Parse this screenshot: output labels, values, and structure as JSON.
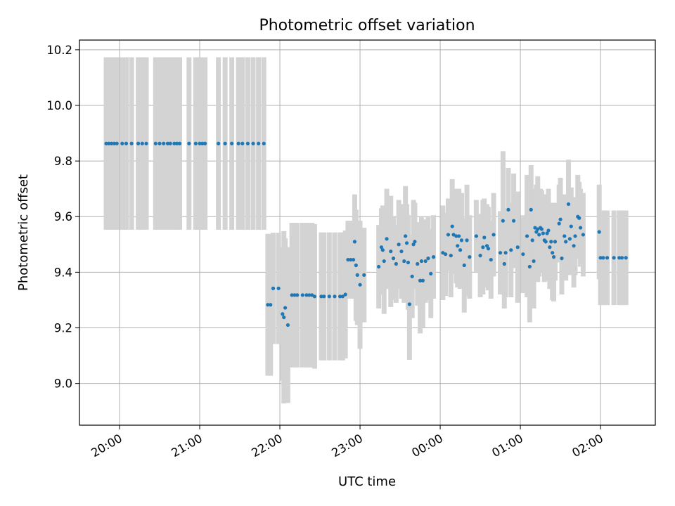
{
  "chart_data": {
    "type": "scatter",
    "title": "Photometric offset variation",
    "xlabel": "UTC time",
    "ylabel": "Photometric offset",
    "xlim": [
      "19:30",
      "02:41"
    ],
    "ylim": [
      8.85,
      10.235
    ],
    "xticks": [
      "20:00",
      "21:00",
      "22:00",
      "23:00",
      "00:00",
      "01:00",
      "02:00"
    ],
    "yticks": [
      9.0,
      9.2,
      9.4,
      9.6,
      9.8,
      10.0,
      10.2
    ],
    "ytick_labels": [
      "9.0",
      "9.2",
      "9.4",
      "9.6",
      "9.8",
      "10.0",
      "10.2"
    ],
    "grid": true,
    "point_color": "#1f77b4",
    "errorbar_color": "#d3d3d3",
    "points": [
      {
        "t": "19:50",
        "y": 9.863,
        "e": 0.31
      },
      {
        "t": "19:52",
        "y": 9.863,
        "e": 0.31
      },
      {
        "t": "19:54",
        "y": 9.863,
        "e": 0.31
      },
      {
        "t": "19:56",
        "y": 9.863,
        "e": 0.31
      },
      {
        "t": "19:58",
        "y": 9.863,
        "e": 0.31
      },
      {
        "t": "20:02",
        "y": 9.863,
        "e": 0.31
      },
      {
        "t": "20:05",
        "y": 9.863,
        "e": 0.31
      },
      {
        "t": "20:09",
        "y": 9.863,
        "e": 0.31
      },
      {
        "t": "20:14",
        "y": 9.863,
        "e": 0.31
      },
      {
        "t": "20:17",
        "y": 9.863,
        "e": 0.31
      },
      {
        "t": "20:20",
        "y": 9.863,
        "e": 0.31
      },
      {
        "t": "20:27",
        "y": 9.863,
        "e": 0.31
      },
      {
        "t": "20:30",
        "y": 9.863,
        "e": 0.31
      },
      {
        "t": "20:33",
        "y": 9.863,
        "e": 0.31
      },
      {
        "t": "20:36",
        "y": 9.863,
        "e": 0.31
      },
      {
        "t": "20:38",
        "y": 9.863,
        "e": 0.31
      },
      {
        "t": "20:41",
        "y": 9.863,
        "e": 0.31
      },
      {
        "t": "20:43",
        "y": 9.863,
        "e": 0.31
      },
      {
        "t": "20:45",
        "y": 9.863,
        "e": 0.31
      },
      {
        "t": "20:52",
        "y": 9.863,
        "e": 0.31
      },
      {
        "t": "20:57",
        "y": 9.863,
        "e": 0.31
      },
      {
        "t": "21:00",
        "y": 9.863,
        "e": 0.31
      },
      {
        "t": "21:02",
        "y": 9.863,
        "e": 0.31
      },
      {
        "t": "21:04",
        "y": 9.863,
        "e": 0.31
      },
      {
        "t": "21:14",
        "y": 9.863,
        "e": 0.31
      },
      {
        "t": "21:19",
        "y": 9.863,
        "e": 0.31
      },
      {
        "t": "21:24",
        "y": 9.863,
        "e": 0.31
      },
      {
        "t": "21:29",
        "y": 9.863,
        "e": 0.31
      },
      {
        "t": "21:32",
        "y": 9.863,
        "e": 0.31
      },
      {
        "t": "21:36",
        "y": 9.863,
        "e": 0.31
      },
      {
        "t": "21:40",
        "y": 9.863,
        "e": 0.31
      },
      {
        "t": "21:44",
        "y": 9.863,
        "e": 0.31
      },
      {
        "t": "21:48",
        "y": 9.863,
        "e": 0.31
      },
      {
        "t": "21:51",
        "y": 9.283,
        "e": 0.255
      },
      {
        "t": "21:53",
        "y": 9.283,
        "e": 0.255
      },
      {
        "t": "21:55",
        "y": 9.342,
        "e": 0.2
      },
      {
        "t": "21:59",
        "y": 9.342,
        "e": 0.2
      },
      {
        "t": "22:02",
        "y": 9.25,
        "e": 0.24
      },
      {
        "t": "22:03",
        "y": 9.238,
        "e": 0.31
      },
      {
        "t": "22:04",
        "y": 9.272,
        "e": 0.25
      },
      {
        "t": "22:06",
        "y": 9.21,
        "e": 0.28
      },
      {
        "t": "22:09",
        "y": 9.318,
        "e": 0.26
      },
      {
        "t": "22:11",
        "y": 9.318,
        "e": 0.26
      },
      {
        "t": "22:13",
        "y": 9.318,
        "e": 0.26
      },
      {
        "t": "22:17",
        "y": 9.318,
        "e": 0.26
      },
      {
        "t": "22:20",
        "y": 9.318,
        "e": 0.26
      },
      {
        "t": "22:22",
        "y": 9.318,
        "e": 0.26
      },
      {
        "t": "22:24",
        "y": 9.318,
        "e": 0.26
      },
      {
        "t": "22:26",
        "y": 9.313,
        "e": 0.26
      },
      {
        "t": "22:31",
        "y": 9.313,
        "e": 0.23
      },
      {
        "t": "22:33",
        "y": 9.313,
        "e": 0.23
      },
      {
        "t": "22:37",
        "y": 9.313,
        "e": 0.23
      },
      {
        "t": "22:41",
        "y": 9.313,
        "e": 0.23
      },
      {
        "t": "22:45",
        "y": 9.313,
        "e": 0.23
      },
      {
        "t": "22:47",
        "y": 9.313,
        "e": 0.23
      },
      {
        "t": "22:49",
        "y": 9.32,
        "e": 0.23
      },
      {
        "t": "22:51",
        "y": 9.445,
        "e": 0.14
      },
      {
        "t": "22:53",
        "y": 9.445,
        "e": 0.14
      },
      {
        "t": "22:55",
        "y": 9.445,
        "e": 0.14
      },
      {
        "t": "22:56",
        "y": 9.51,
        "e": 0.17
      },
      {
        "t": "22:57",
        "y": 9.425,
        "e": 0.2
      },
      {
        "t": "22:58",
        "y": 9.39,
        "e": 0.18
      },
      {
        "t": "23:00",
        "y": 9.355,
        "e": 0.23
      },
      {
        "t": "23:03",
        "y": 9.39,
        "e": 0.17
      },
      {
        "t": "23:14",
        "y": 9.42,
        "e": 0.15
      },
      {
        "t": "23:16",
        "y": 9.49,
        "e": 0.14
      },
      {
        "t": "23:17",
        "y": 9.48,
        "e": 0.16
      },
      {
        "t": "23:18",
        "y": 9.44,
        "e": 0.19
      },
      {
        "t": "23:20",
        "y": 9.52,
        "e": 0.18
      },
      {
        "t": "23:23",
        "y": 9.475,
        "e": 0.2
      },
      {
        "t": "23:25",
        "y": 9.45,
        "e": 0.15
      },
      {
        "t": "23:27",
        "y": 9.43,
        "e": 0.14
      },
      {
        "t": "23:29",
        "y": 9.5,
        "e": 0.16
      },
      {
        "t": "23:31",
        "y": 9.475,
        "e": 0.17
      },
      {
        "t": "23:33",
        "y": 9.44,
        "e": 0.15
      },
      {
        "t": "23:34",
        "y": 9.53,
        "e": 0.18
      },
      {
        "t": "23:35",
        "y": 9.505,
        "e": 0.14
      },
      {
        "t": "23:36",
        "y": 9.435,
        "e": 0.17
      },
      {
        "t": "23:37",
        "y": 9.285,
        "e": 0.2
      },
      {
        "t": "23:39",
        "y": 9.385,
        "e": 0.15
      },
      {
        "t": "23:40",
        "y": 9.5,
        "e": 0.16
      },
      {
        "t": "23:41",
        "y": 9.51,
        "e": 0.14
      },
      {
        "t": "23:43",
        "y": 9.43,
        "e": 0.15
      },
      {
        "t": "23:45",
        "y": 9.37,
        "e": 0.19
      },
      {
        "t": "23:46",
        "y": 9.44,
        "e": 0.16
      },
      {
        "t": "23:47",
        "y": 9.37,
        "e": 0.17
      },
      {
        "t": "23:49",
        "y": 9.44,
        "e": 0.15
      },
      {
        "t": "23:51",
        "y": 9.45,
        "e": 0.15
      },
      {
        "t": "23:53",
        "y": 9.395,
        "e": 0.16
      },
      {
        "t": "23:55",
        "y": 9.455,
        "e": 0.15
      },
      {
        "t": "00:02",
        "y": 9.47,
        "e": 0.17
      },
      {
        "t": "00:04",
        "y": 9.465,
        "e": 0.15
      },
      {
        "t": "00:06",
        "y": 9.535,
        "e": 0.13
      },
      {
        "t": "00:08",
        "y": 9.46,
        "e": 0.15
      },
      {
        "t": "00:09",
        "y": 9.565,
        "e": 0.17
      },
      {
        "t": "00:10",
        "y": 9.535,
        "e": 0.14
      },
      {
        "t": "00:12",
        "y": 9.53,
        "e": 0.17
      },
      {
        "t": "00:13",
        "y": 9.495,
        "e": 0.15
      },
      {
        "t": "00:14",
        "y": 9.53,
        "e": 0.17
      },
      {
        "t": "00:15",
        "y": 9.48,
        "e": 0.14
      },
      {
        "t": "00:16",
        "y": 9.515,
        "e": 0.17
      },
      {
        "t": "00:18",
        "y": 9.425,
        "e": 0.17
      },
      {
        "t": "00:20",
        "y": 9.515,
        "e": 0.2
      },
      {
        "t": "00:22",
        "y": 9.455,
        "e": 0.15
      },
      {
        "t": "00:27",
        "y": 9.53,
        "e": 0.13
      },
      {
        "t": "00:30",
        "y": 9.46,
        "e": 0.15
      },
      {
        "t": "00:32",
        "y": 9.49,
        "e": 0.17
      },
      {
        "t": "00:33",
        "y": 9.525,
        "e": 0.14
      },
      {
        "t": "00:35",
        "y": 9.495,
        "e": 0.15
      },
      {
        "t": "00:36",
        "y": 9.485,
        "e": 0.15
      },
      {
        "t": "00:38",
        "y": 9.445,
        "e": 0.14
      },
      {
        "t": "00:40",
        "y": 9.535,
        "e": 0.15
      },
      {
        "t": "00:45",
        "y": 9.47,
        "e": 0.15
      },
      {
        "t": "00:47",
        "y": 9.585,
        "e": 0.25
      },
      {
        "t": "00:48",
        "y": 9.43,
        "e": 0.16
      },
      {
        "t": "00:49",
        "y": 9.47,
        "e": 0.16
      },
      {
        "t": "00:51",
        "y": 9.625,
        "e": 0.15
      },
      {
        "t": "00:53",
        "y": 9.48,
        "e": 0.17
      },
      {
        "t": "00:55",
        "y": 9.585,
        "e": 0.17
      },
      {
        "t": "00:58",
        "y": 9.49,
        "e": 0.2
      },
      {
        "t": "01:02",
        "y": 9.465,
        "e": 0.14
      },
      {
        "t": "01:05",
        "y": 9.53,
        "e": 0.22
      },
      {
        "t": "01:07",
        "y": 9.42,
        "e": 0.2
      },
      {
        "t": "01:08",
        "y": 9.625,
        "e": 0.16
      },
      {
        "t": "01:09",
        "y": 9.515,
        "e": 0.17
      },
      {
        "t": "01:10",
        "y": 9.44,
        "e": 0.17
      },
      {
        "t": "01:11",
        "y": 9.56,
        "e": 0.14
      },
      {
        "t": "01:12",
        "y": 9.545,
        "e": 0.17
      },
      {
        "t": "01:13",
        "y": 9.555,
        "e": 0.19
      },
      {
        "t": "01:14",
        "y": 9.535,
        "e": 0.15
      },
      {
        "t": "01:15",
        "y": 9.56,
        "e": 0.14
      },
      {
        "t": "01:16",
        "y": 9.555,
        "e": 0.14
      },
      {
        "t": "01:17",
        "y": 9.54,
        "e": 0.14
      },
      {
        "t": "01:18",
        "y": 9.515,
        "e": 0.15
      },
      {
        "t": "01:19",
        "y": 9.51,
        "e": 0.14
      },
      {
        "t": "01:20",
        "y": 9.54,
        "e": 0.14
      },
      {
        "t": "01:21",
        "y": 9.55,
        "e": 0.15
      },
      {
        "t": "01:22",
        "y": 9.49,
        "e": 0.15
      },
      {
        "t": "01:23",
        "y": 9.51,
        "e": 0.14
      },
      {
        "t": "01:24",
        "y": 9.47,
        "e": 0.17
      },
      {
        "t": "01:25",
        "y": 9.455,
        "e": 0.16
      },
      {
        "t": "01:26",
        "y": 9.51,
        "e": 0.14
      },
      {
        "t": "01:29",
        "y": 9.575,
        "e": 0.14
      },
      {
        "t": "01:30",
        "y": 9.59,
        "e": 0.15
      },
      {
        "t": "01:31",
        "y": 9.45,
        "e": 0.13
      },
      {
        "t": "01:33",
        "y": 9.53,
        "e": 0.15
      },
      {
        "t": "01:34",
        "y": 9.51,
        "e": 0.14
      },
      {
        "t": "01:36",
        "y": 9.645,
        "e": 0.16
      },
      {
        "t": "01:37",
        "y": 9.52,
        "e": 0.13
      },
      {
        "t": "01:38",
        "y": 9.565,
        "e": 0.14
      },
      {
        "t": "01:40",
        "y": 9.495,
        "e": 0.15
      },
      {
        "t": "01:41",
        "y": 9.53,
        "e": 0.14
      },
      {
        "t": "01:43",
        "y": 9.6,
        "e": 0.15
      },
      {
        "t": "01:44",
        "y": 9.595,
        "e": 0.13
      },
      {
        "t": "01:45",
        "y": 9.56,
        "e": 0.14
      },
      {
        "t": "01:47",
        "y": 9.535,
        "e": 0.15
      },
      {
        "t": "01:59",
        "y": 9.545,
        "e": 0.17
      },
      {
        "t": "02:00",
        "y": 9.452,
        "e": 0.17
      },
      {
        "t": "02:02",
        "y": 9.452,
        "e": 0.17
      },
      {
        "t": "02:05",
        "y": 9.452,
        "e": 0.17
      },
      {
        "t": "02:10",
        "y": 9.452,
        "e": 0.17
      },
      {
        "t": "02:14",
        "y": 9.452,
        "e": 0.17
      },
      {
        "t": "02:16",
        "y": 9.452,
        "e": 0.17
      },
      {
        "t": "02:19",
        "y": 9.452,
        "e": 0.17
      }
    ]
  }
}
